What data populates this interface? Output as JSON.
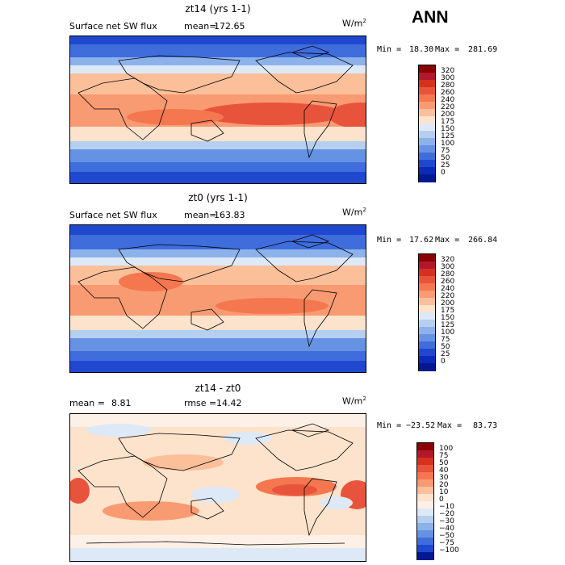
{
  "season_label": "ANN",
  "units_base": "W/m",
  "units_exp": "2",
  "panels": [
    {
      "title": "zt14 (yrs 1-1)",
      "field_label": "Surface net SW flux",
      "stat_label": "mean=",
      "stat_value": "172.65",
      "min_label": "Min =",
      "min_value": "18.30",
      "max_label": "Max =",
      "max_value": "281.69",
      "colorbar_labels": [
        "320",
        "300",
        "280",
        "260",
        "240",
        "220",
        "200",
        "175",
        "150",
        "125",
        "100",
        "75",
        "50",
        "25",
        "0"
      ],
      "colors": [
        "#8b0000",
        "#b2182b",
        "#d6301f",
        "#e8543b",
        "#f4774f",
        "#f99b72",
        "#fbbf9a",
        "#fde2cc",
        "#dde9f7",
        "#b5cff0",
        "#8db2ea",
        "#6692e3",
        "#3f6ddc",
        "#1f48cf",
        "#0b2aba",
        "#001990"
      ]
    },
    {
      "title": "zt0 (yrs 1-1)",
      "field_label": "Surface net SW flux",
      "stat_label": "mean=",
      "stat_value": "163.83",
      "min_label": "Min =",
      "min_value": "17.62",
      "max_label": "Max =",
      "max_value": "266.84",
      "colorbar_labels": [
        "320",
        "300",
        "280",
        "260",
        "240",
        "220",
        "200",
        "175",
        "150",
        "125",
        "100",
        "75",
        "50",
        "25",
        "0"
      ],
      "colors": [
        "#8b0000",
        "#b2182b",
        "#d6301f",
        "#e8543b",
        "#f4774f",
        "#f99b72",
        "#fbbf9a",
        "#fde2cc",
        "#dde9f7",
        "#b5cff0",
        "#8db2ea",
        "#6692e3",
        "#3f6ddc",
        "#1f48cf",
        "#0b2aba",
        "#001990"
      ]
    },
    {
      "title": "zt14 - zt0",
      "field_label": "mean =",
      "stat_label": "rmse =",
      "mean_value": "8.81",
      "stat_value": "14.42",
      "min_label": "Min =",
      "min_value": "−23.52",
      "max_label": "Max =",
      "max_value": "83.73",
      "colorbar_labels": [
        "100",
        "75",
        "50",
        "40",
        "30",
        "20",
        "10",
        "0",
        "−10",
        "−20",
        "−30",
        "−40",
        "−50",
        "−75",
        "−100"
      ],
      "colors": [
        "#8b0000",
        "#b2182b",
        "#d6301f",
        "#e8543b",
        "#f4774f",
        "#f99b72",
        "#fbbf9a",
        "#fde2cc",
        "#fdf0e6",
        "#dde9f7",
        "#b5cff0",
        "#8db2ea",
        "#6692e3",
        "#3f6ddc",
        "#1f48cf",
        "#001990"
      ]
    }
  ]
}
